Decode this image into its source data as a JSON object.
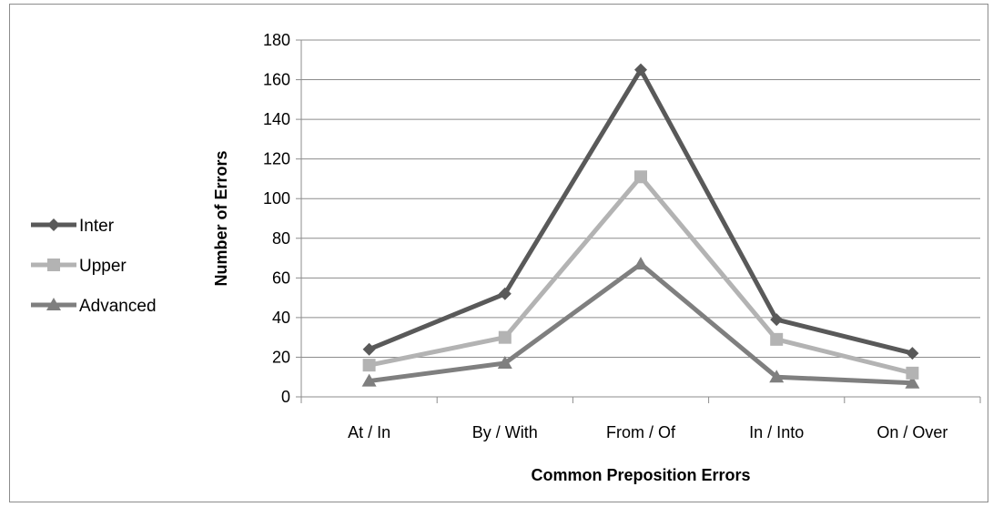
{
  "chart_data": {
    "type": "line",
    "title": "",
    "xlabel": "Common Preposition Errors",
    "ylabel": "Number of Errors",
    "categories": [
      "At / In",
      "By / With",
      "From / Of",
      "In / Into",
      "On / Over"
    ],
    "ylim": [
      0,
      180
    ],
    "yticks": [
      0,
      20,
      40,
      60,
      80,
      100,
      120,
      140,
      160,
      180
    ],
    "grid": true,
    "legend_position": "left",
    "series": [
      {
        "name": "Inter",
        "values": [
          24,
          52,
          165,
          39,
          22
        ],
        "color": "#595959",
        "marker": "diamond"
      },
      {
        "name": "Upper",
        "values": [
          16,
          30,
          111,
          29,
          12
        ],
        "color": "#b3b3b3",
        "marker": "square"
      },
      {
        "name": "Advanced",
        "values": [
          8,
          17,
          67,
          10,
          7
        ],
        "color": "#7f7f7f",
        "marker": "triangle"
      }
    ]
  }
}
